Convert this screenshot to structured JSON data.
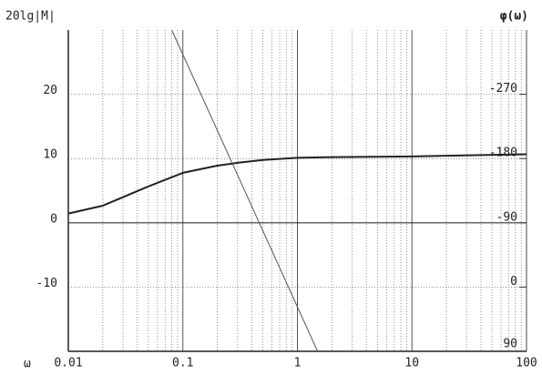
{
  "chart_data": {
    "type": "line",
    "y_label": "20lg|M|",
    "y2_label": "φ(ω)",
    "x_label": "ω",
    "x_scale": "log",
    "xlim": [
      0.01,
      100
    ],
    "xticks": [
      0.01,
      0.1,
      1,
      10,
      100
    ],
    "ylim": [
      -20,
      30
    ],
    "yticks": [
      -10,
      0,
      10,
      20
    ],
    "y2lim": [
      90,
      -360
    ],
    "y2ticks": [
      -270,
      -180,
      -90,
      0,
      90
    ],
    "grid": true,
    "series": [
      {
        "color": "#222222",
        "axis": "y2",
        "width": 2,
        "x": [
          0.01,
          0.02,
          0.05,
          0.1,
          0.2,
          0.3,
          0.5,
          1,
          2,
          10,
          100
        ],
        "values": [
          -103,
          -114,
          -141,
          -160,
          -170,
          -174,
          -178,
          -181,
          -182,
          -183,
          -186
        ]
      },
      {
        "color": "#555555",
        "axis": "y",
        "width": 1,
        "x": [
          0.08,
          1.5
        ],
        "values": [
          30,
          -20
        ]
      }
    ]
  }
}
